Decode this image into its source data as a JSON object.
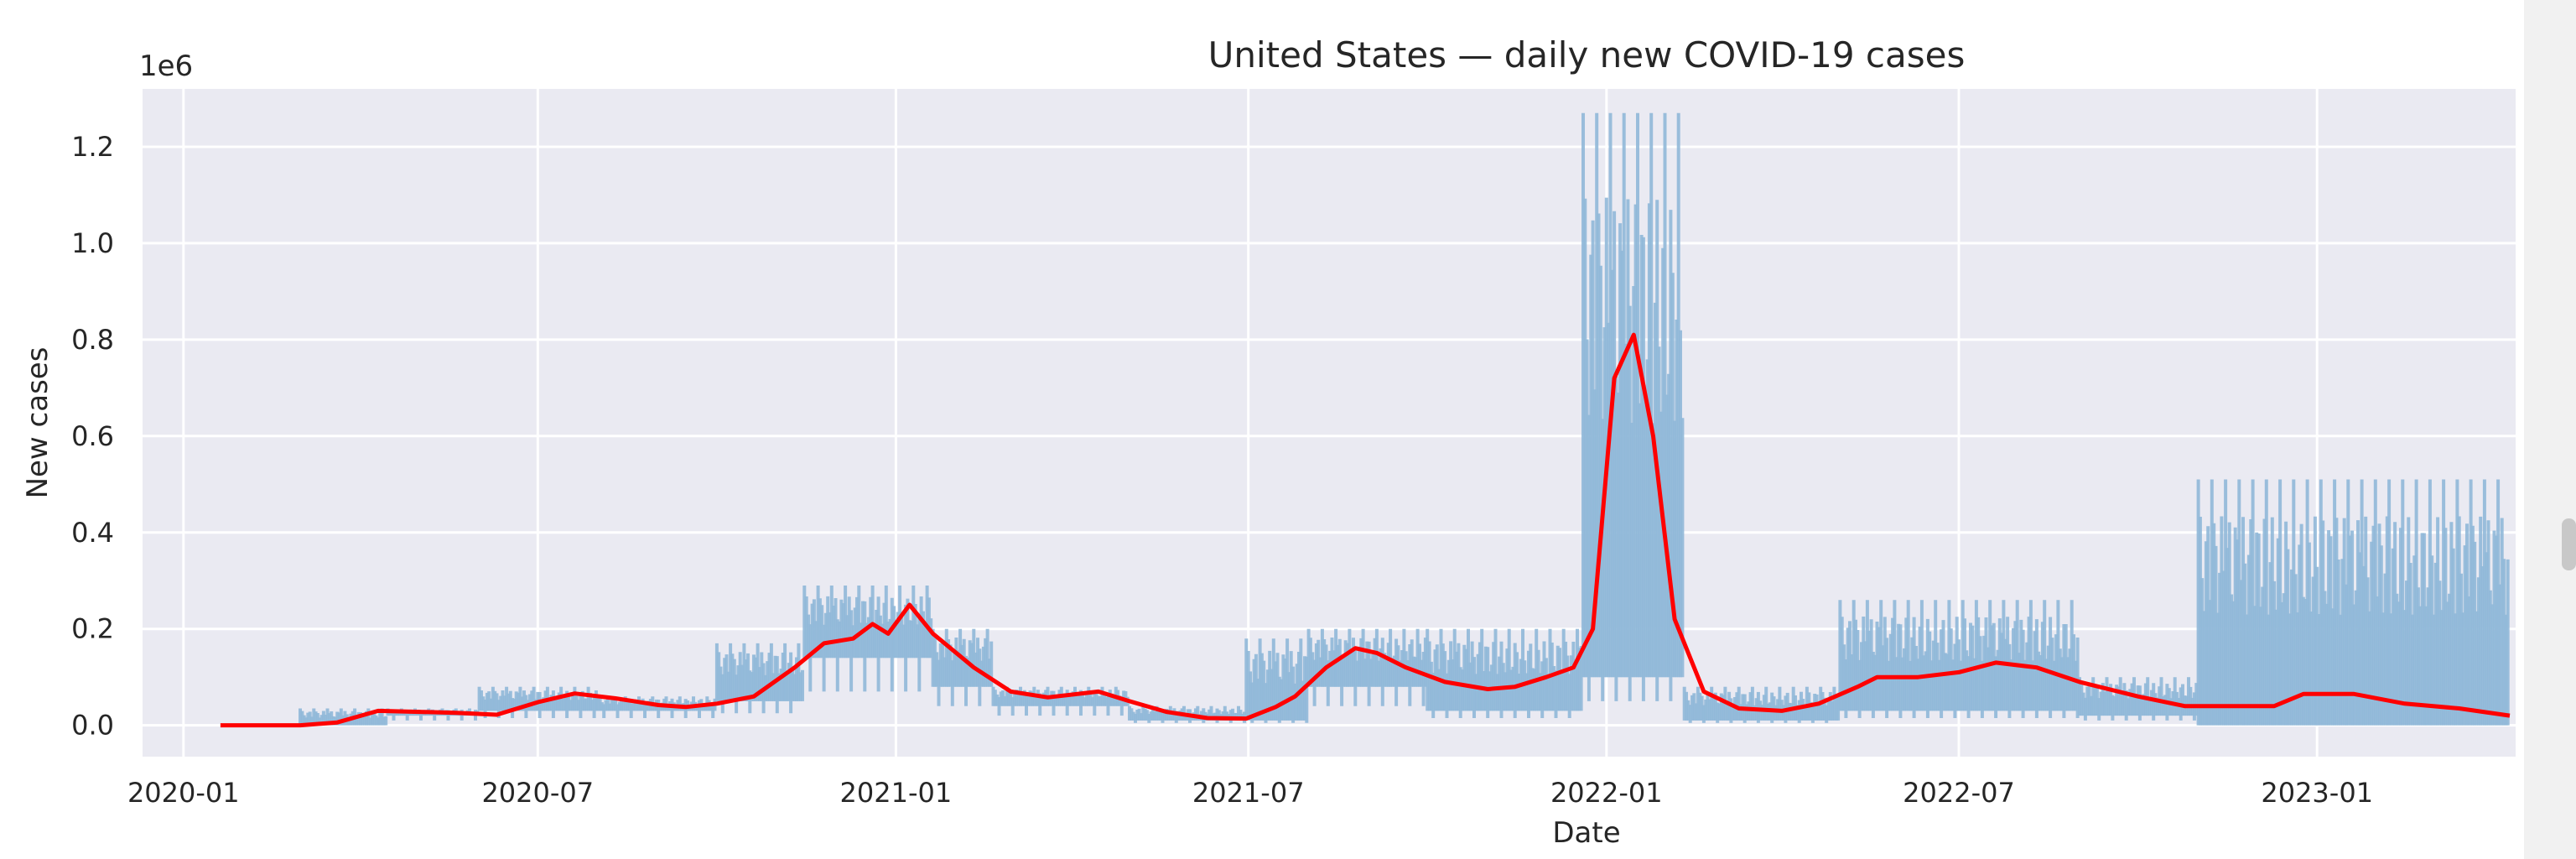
{
  "chart_data": {
    "type": "line",
    "title": "United States — daily new COVID-19 cases",
    "xlabel": "Date",
    "ylabel": "New cases",
    "y_multiplier_label": "1e6",
    "xlim": [
      "2019-12-11",
      "2023-04-13"
    ],
    "ylim": [
      -0.065,
      1.32
    ],
    "x_ticks": [
      "2020-01-01",
      "2020-07-01",
      "2021-01-01",
      "2021-07-01",
      "2022-01-01",
      "2022-07-01",
      "2023-01-01"
    ],
    "x_tick_labels": [
      "2020-01",
      "2020-07",
      "2021-01",
      "2021-07",
      "2022-01",
      "2022-07",
      "2023-01"
    ],
    "y_ticks": [
      0,
      0.2,
      0.4,
      0.6,
      0.8,
      1.0,
      1.2
    ],
    "y_tick_labels": [
      "0.0",
      "0.2",
      "0.4",
      "0.6",
      "0.8",
      "1.0",
      "1.2"
    ],
    "grid": true,
    "background": "#eaeaf2",
    "series": [
      {
        "role": "daily",
        "color": "#90b8d8",
        "encoding": "vertical-bars spanning each period's daily min to max (in millions)",
        "periods": [
          {
            "start": "2020-03-01",
            "end": "2020-04-15",
            "low": 0.0,
            "high": 0.035
          },
          {
            "start": "2020-04-15",
            "end": "2020-06-01",
            "low": 0.02,
            "high": 0.035
          },
          {
            "start": "2020-06-01",
            "end": "2020-08-01",
            "low": 0.03,
            "high": 0.08
          },
          {
            "start": "2020-08-01",
            "end": "2020-10-01",
            "low": 0.03,
            "high": 0.06
          },
          {
            "start": "2020-10-01",
            "end": "2020-11-15",
            "low": 0.05,
            "high": 0.17
          },
          {
            "start": "2020-11-15",
            "end": "2021-01-20",
            "low": 0.14,
            "high": 0.29
          },
          {
            "start": "2021-01-20",
            "end": "2021-02-20",
            "low": 0.08,
            "high": 0.2
          },
          {
            "start": "2021-02-20",
            "end": "2021-05-01",
            "low": 0.04,
            "high": 0.08
          },
          {
            "start": "2021-05-01",
            "end": "2021-06-30",
            "low": 0.01,
            "high": 0.04
          },
          {
            "start": "2021-06-30",
            "end": "2021-08-01",
            "low": 0.01,
            "high": 0.18
          },
          {
            "start": "2021-08-01",
            "end": "2021-10-01",
            "low": 0.08,
            "high": 0.2
          },
          {
            "start": "2021-10-01",
            "end": "2021-12-20",
            "low": 0.03,
            "high": 0.2
          },
          {
            "start": "2021-12-20",
            "end": "2022-02-10",
            "low": 0.1,
            "high": 1.27
          },
          {
            "start": "2022-02-10",
            "end": "2022-05-01",
            "low": 0.01,
            "high": 0.08
          },
          {
            "start": "2022-05-01",
            "end": "2022-09-01",
            "low": 0.03,
            "high": 0.26
          },
          {
            "start": "2022-09-01",
            "end": "2022-11-01",
            "low": 0.02,
            "high": 0.1
          },
          {
            "start": "2022-11-01",
            "end": "2023-04-10",
            "low": 0.0,
            "high": 0.51
          }
        ]
      },
      {
        "role": "7-day average",
        "color": "#ff0000",
        "x": [
          "2020-01-20",
          "2020-03-01",
          "2020-03-20",
          "2020-04-10",
          "2020-05-01",
          "2020-05-20",
          "2020-06-10",
          "2020-07-01",
          "2020-07-20",
          "2020-08-10",
          "2020-09-01",
          "2020-09-15",
          "2020-10-01",
          "2020-10-20",
          "2020-11-10",
          "2020-11-25",
          "2020-12-10",
          "2020-12-20",
          "2020-12-28",
          "2021-01-08",
          "2021-01-20",
          "2021-02-10",
          "2021-03-01",
          "2021-03-20",
          "2021-04-15",
          "2021-05-01",
          "2021-05-20",
          "2021-06-10",
          "2021-06-30",
          "2021-07-15",
          "2021-07-25",
          "2021-08-10",
          "2021-08-25",
          "2021-09-05",
          "2021-09-20",
          "2021-10-10",
          "2021-11-01",
          "2021-11-15",
          "2021-12-01",
          "2021-12-15",
          "2021-12-25",
          "2022-01-05",
          "2022-01-15",
          "2022-01-25",
          "2022-02-05",
          "2022-02-20",
          "2022-03-10",
          "2022-04-01",
          "2022-04-20",
          "2022-05-10",
          "2022-05-20",
          "2022-06-10",
          "2022-07-01",
          "2022-07-20",
          "2022-08-10",
          "2022-09-01",
          "2022-10-01",
          "2022-10-25",
          "2022-11-10",
          "2022-12-01",
          "2022-12-10",
          "2022-12-25",
          "2023-01-05",
          "2023-01-20",
          "2023-02-15",
          "2023-03-15",
          "2023-04-10"
        ],
        "y": [
          0.0,
          0.0,
          0.006,
          0.03,
          0.028,
          0.026,
          0.022,
          0.048,
          0.066,
          0.056,
          0.042,
          0.038,
          0.045,
          0.06,
          0.12,
          0.17,
          0.18,
          0.21,
          0.19,
          0.25,
          0.19,
          0.12,
          0.07,
          0.058,
          0.07,
          0.05,
          0.028,
          0.015,
          0.014,
          0.038,
          0.06,
          0.12,
          0.16,
          0.15,
          0.12,
          0.09,
          0.075,
          0.08,
          0.1,
          0.12,
          0.2,
          0.72,
          0.81,
          0.6,
          0.22,
          0.07,
          0.035,
          0.03,
          0.045,
          0.08,
          0.1,
          0.1,
          0.11,
          0.13,
          0.12,
          0.09,
          0.06,
          0.04,
          0.04,
          0.04,
          0.04,
          0.065,
          0.065,
          0.065,
          0.045,
          0.035,
          0.02
        ]
      }
    ]
  },
  "colors": {
    "scrollbar_track": "#f1f1f1",
    "scrollbar_thumb": "#c8c8c8"
  }
}
